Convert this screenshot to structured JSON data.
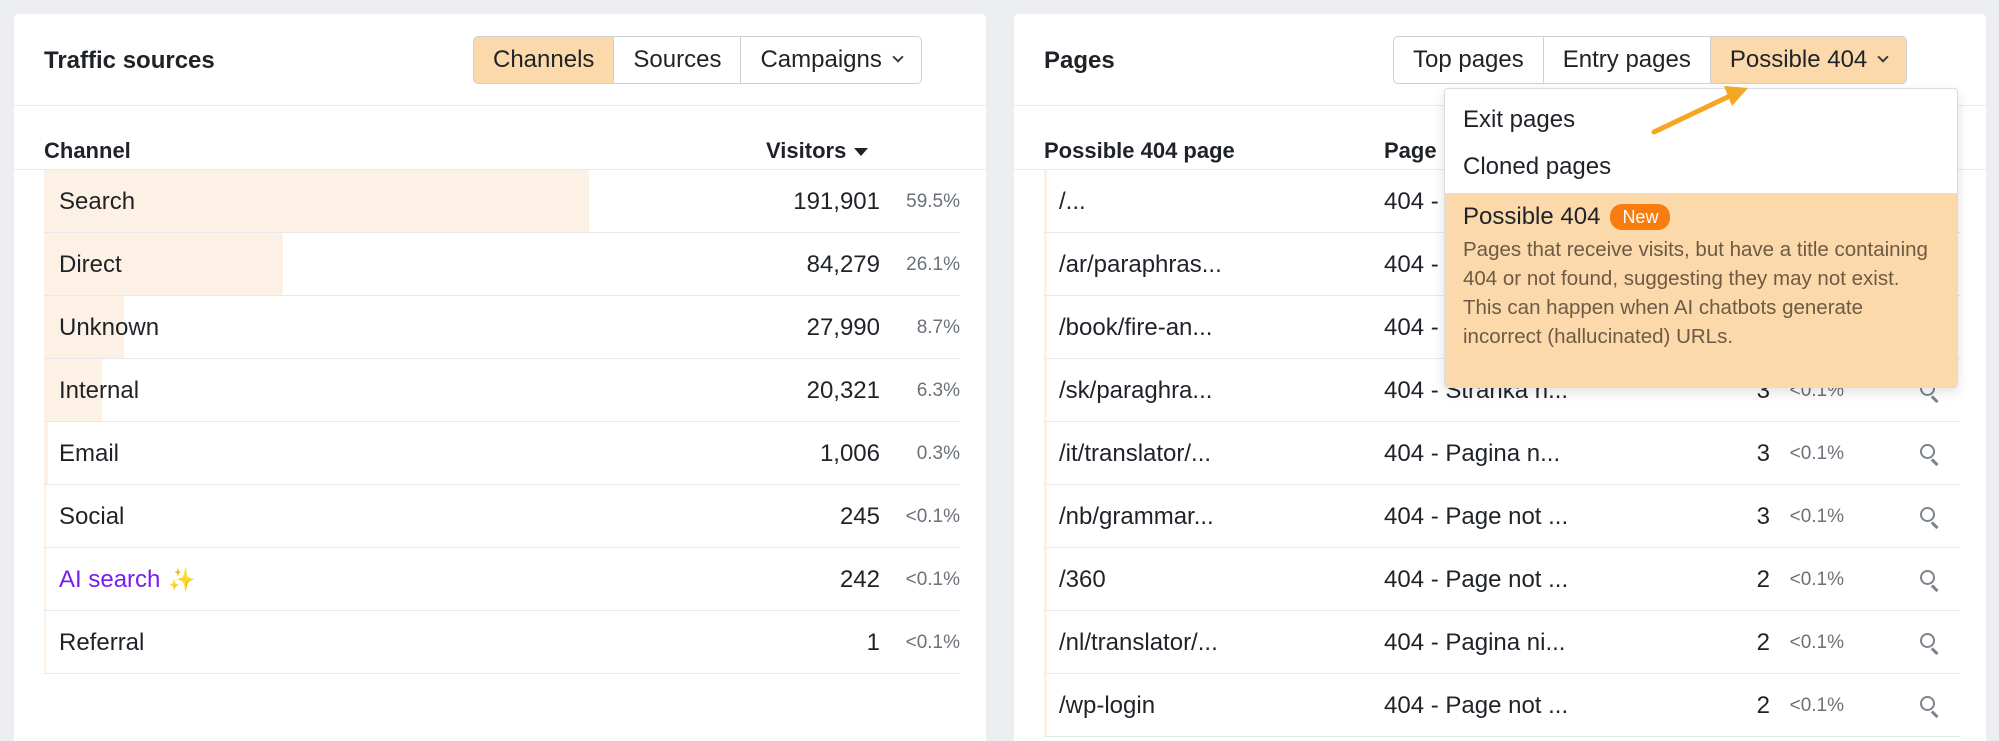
{
  "traffic": {
    "title": "Traffic sources",
    "tabs": [
      "Channels",
      "Sources",
      "Campaigns"
    ],
    "active_tab": "Channels",
    "col_channel": "Channel",
    "col_visitors": "Visitors",
    "rows": [
      {
        "name": "Search",
        "visitors": "191,901",
        "pct": "59.5%",
        "share": 0.595
      },
      {
        "name": "Direct",
        "visitors": "84,279",
        "pct": "26.1%",
        "share": 0.261
      },
      {
        "name": "Unknown",
        "visitors": "27,990",
        "pct": "8.7%",
        "share": 0.087
      },
      {
        "name": "Internal",
        "visitors": "20,321",
        "pct": "6.3%",
        "share": 0.063
      },
      {
        "name": "Email",
        "visitors": "1,006",
        "pct": "0.3%",
        "share": 0.003
      },
      {
        "name": "Social",
        "visitors": "245",
        "pct": "<0.1%",
        "share": 0.0
      },
      {
        "name": "AI search",
        "visitors": "242",
        "pct": "<0.1%",
        "share": 0.0
      },
      {
        "name": "Referral",
        "visitors": "1",
        "pct": "<0.1%",
        "share": 0.0
      }
    ]
  },
  "pages": {
    "title": "Pages",
    "tabs": [
      "Top pages",
      "Entry pages",
      "Possible 404"
    ],
    "active_tab": "Possible 404",
    "col_page": "Possible 404 page",
    "col_title": "Page",
    "rows": [
      {
        "path": "/...",
        "title": "404 -",
        "visitors": "",
        "pct": ""
      },
      {
        "path": "/ar/paraphras...",
        "title": "404 -",
        "visitors": "",
        "pct": ""
      },
      {
        "path": "/book/fire-an...",
        "title": "404 -",
        "visitors": "",
        "pct": ""
      },
      {
        "path": "/sk/paraghra...",
        "title": "404 - Stránka n...",
        "visitors": "3",
        "pct": "<0.1%"
      },
      {
        "path": "/it/translator/...",
        "title": "404 - Pagina n...",
        "visitors": "3",
        "pct": "<0.1%"
      },
      {
        "path": "/nb/grammar...",
        "title": "404 - Page not ...",
        "visitors": "3",
        "pct": "<0.1%"
      },
      {
        "path": "/360",
        "title": "404 - Page not ...",
        "visitors": "2",
        "pct": "<0.1%"
      },
      {
        "path": "/nl/translator/...",
        "title": "404 - Pagina ni...",
        "visitors": "2",
        "pct": "<0.1%"
      },
      {
        "path": "/wp-login",
        "title": "404 - Page not ...",
        "visitors": "2",
        "pct": "<0.1%"
      }
    ]
  },
  "dropdown": {
    "items": [
      "Exit pages",
      "Cloned pages"
    ],
    "active_title": "Possible 404",
    "badge": "New",
    "description": "Pages that receive visits, but have a title containing 404 or not found, suggesting they may not exist. This can happen when AI chatbots generate incorrect (hallucinated) URLs."
  },
  "colors": {
    "active_tab": "#fcd9ab",
    "bar_fill": "#fdf0e4",
    "badge": "#f77d0e",
    "ai_text": "#7a1cf0",
    "arrow": "#f5a623"
  },
  "icons": {
    "sparkle": "sparkle-icon",
    "search": "search-icon",
    "chevron": "chevron-down-icon",
    "sort": "sort-desc-icon"
  }
}
